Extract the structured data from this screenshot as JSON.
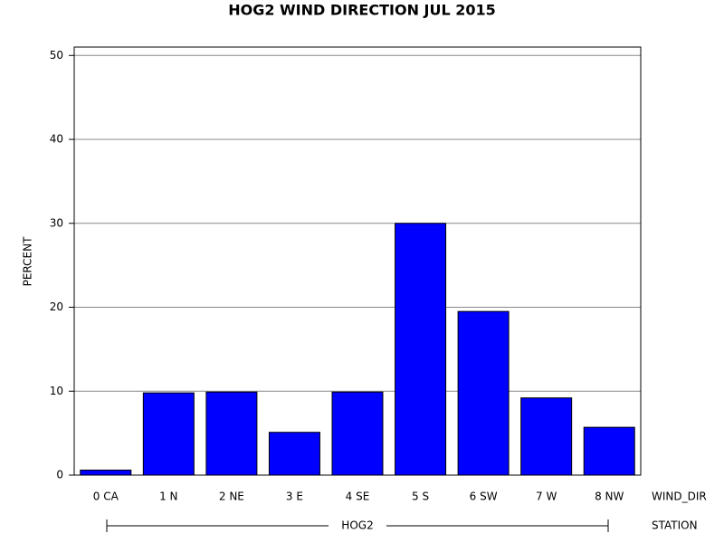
{
  "chart_data": {
    "type": "bar",
    "title": "HOG2 WIND DIRECTION JUL 2015",
    "y_label": "PERCENT",
    "x_label": "WIND_DIR",
    "group_label": "STATION",
    "group": "HOG2",
    "categories": [
      "0 CA",
      "1 N",
      "2 NE",
      "3 E",
      "4 SE",
      "5 S",
      "6 SW",
      "7 W",
      "8 NW"
    ],
    "values": [
      0.6,
      9.8,
      9.9,
      5.1,
      9.9,
      30.0,
      19.5,
      9.2,
      5.7
    ],
    "color": "#0000ff",
    "ylim": [
      0,
      51
    ],
    "yticks": [
      0,
      10,
      20,
      30,
      40,
      50
    ],
    "grid": true
  }
}
